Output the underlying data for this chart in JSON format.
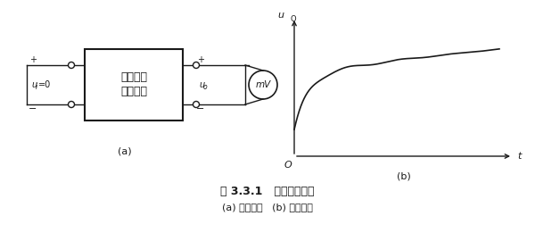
{
  "title1": "图 3.3.1   零点漂移现象",
  "title2": "(a) 测试电路   (b) 测试结果",
  "label_a": "(a)",
  "label_b": "(b)",
  "box_text1": "直接耦合",
  "box_text2": "放大电路",
  "ui_label_main": "u",
  "ui_subscript": "i",
  "ui_equals": "=0",
  "uo_label_main": "u",
  "uo_subscript": "o",
  "mv_label": "mV",
  "uo_axis_main": "u",
  "uo_axis_sub": "O",
  "t_axis_label": "t",
  "origin_label": "O",
  "bg_color": "#ffffff",
  "line_color": "#1a1a1a",
  "plus": "+",
  "minus": "−"
}
